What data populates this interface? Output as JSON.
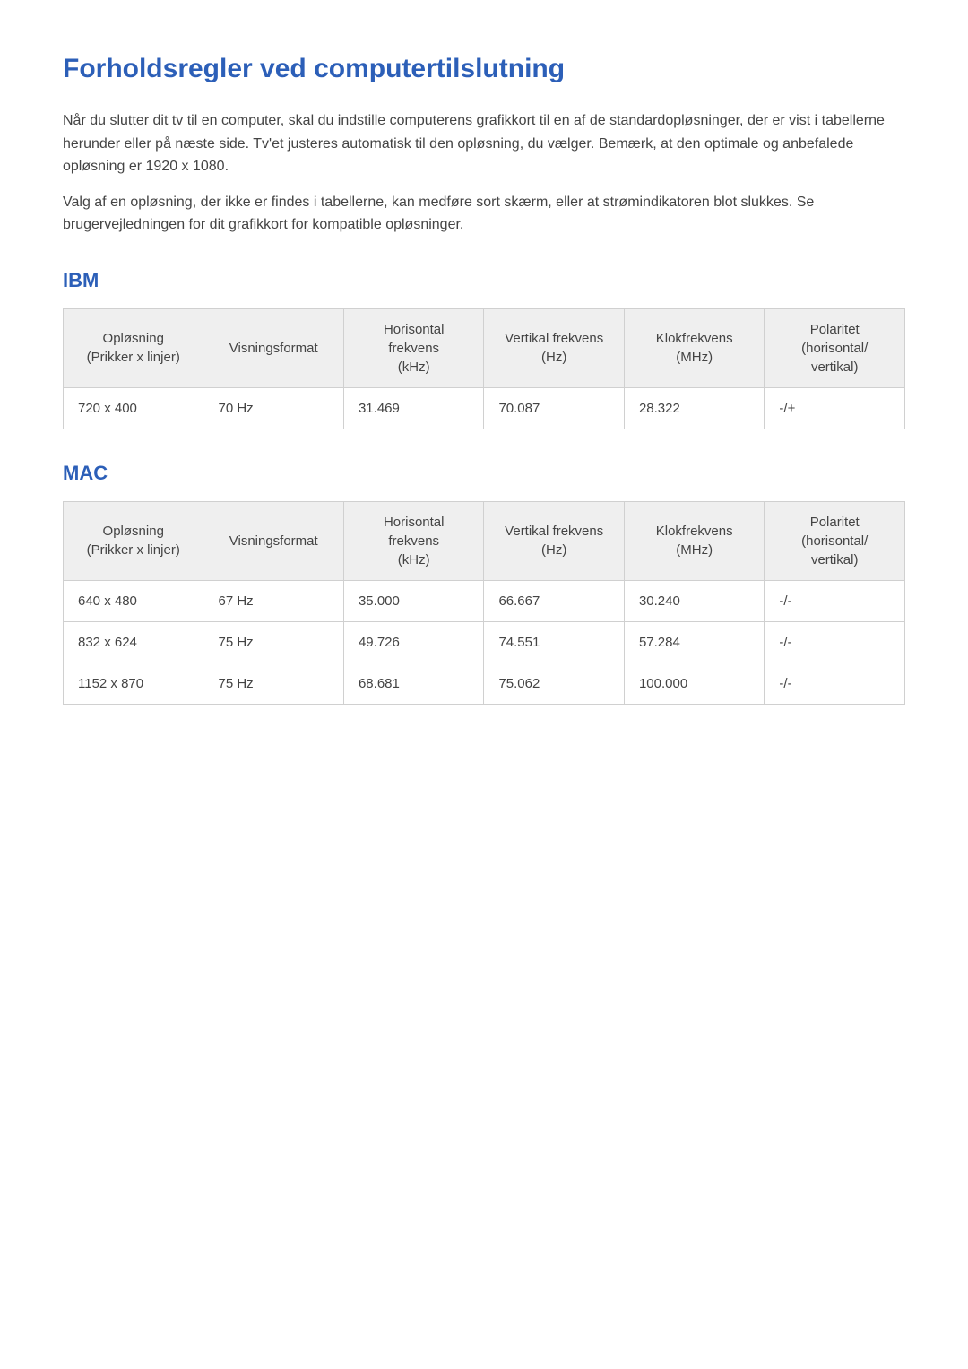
{
  "colors": {
    "heading": "#2c5fb8",
    "body_text": "#444444",
    "table_header_bg": "#efefef",
    "border": "#d0d0d0",
    "page_bg": "#ffffff"
  },
  "title": "Forholdsregler ved computertilslutning",
  "paragraphs": [
    "Når du slutter dit tv til en computer, skal du indstille computerens grafikkort til en af de standardopløsninger, der er vist i tabellerne herunder eller på næste side. Tv'et justeres automatisk til den opløsning, du vælger. Bemærk, at den optimale og anbefalede opløsning er 1920 x 1080.",
    "Valg af en opløsning, der ikke er findes i tabellerne, kan medføre sort skærm, eller at strømindikatoren blot slukkes. Se brugervejledningen for dit grafikkort for kompatible opløsninger."
  ],
  "sections": [
    {
      "heading": "IBM",
      "columns": [
        "Opløsning (Prikker x linjer)",
        "Visningsformat",
        "Horisontal frekvens (kHz)",
        "Vertikal frekvens (Hz)",
        "Klokfrekvens (MHz)",
        "Polaritet (horisontal/vertikal)"
      ],
      "rows": [
        [
          "720 x 400",
          "70 Hz",
          "31.469",
          "70.087",
          "28.322",
          "-/+"
        ]
      ]
    },
    {
      "heading": "MAC",
      "columns": [
        "Opløsning (Prikker x linjer)",
        "Visningsformat",
        "Horisontal frekvens (kHz)",
        "Vertikal frekvens (Hz)",
        "Klokfrekvens (MHz)",
        "Polaritet (horisontal/vertikal)"
      ],
      "rows": [
        [
          "640 x 480",
          "67 Hz",
          "35.000",
          "66.667",
          "30.240",
          "-/-"
        ],
        [
          "832 x 624",
          "75 Hz",
          "49.726",
          "74.551",
          "57.284",
          "-/-"
        ],
        [
          "1152 x 870",
          "75 Hz",
          "68.681",
          "75.062",
          "100.000",
          "-/-"
        ]
      ]
    }
  ]
}
